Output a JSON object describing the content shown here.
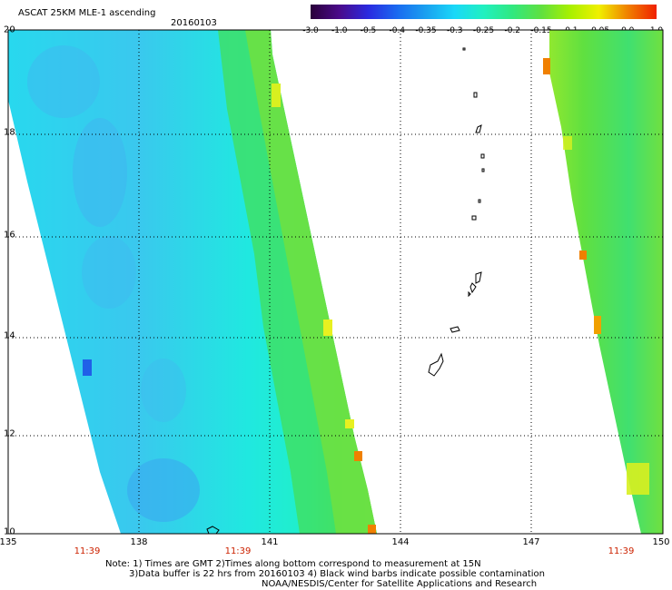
{
  "title": "ASCAT 25KM MLE-1 ascending",
  "date": "20160103",
  "colorbar": {
    "labels": [
      "-3.0",
      "-1.0",
      "-0.5",
      "-0.4",
      "-0.35",
      "-0.3",
      "-0.25",
      "-0.2",
      "-0.15",
      "-0.1",
      "-0.05",
      "0.0",
      "1.0"
    ],
    "colors": [
      "#2a003a",
      "#4a0a8a",
      "#2a2ae0",
      "#1a6af0",
      "#1aa0f0",
      "#1ad8f8",
      "#20f0c0",
      "#30e880",
      "#60e040",
      "#a8f000",
      "#f0f000",
      "#f08000",
      "#f02000"
    ]
  },
  "axes": {
    "lon_labels": [
      "135",
      "138",
      "141",
      "144",
      "147",
      "150"
    ],
    "lat_labels": [
      "20",
      "18",
      "16",
      "14",
      "12",
      "10"
    ],
    "lon_range": [
      135,
      150
    ],
    "lat_range": [
      10,
      20
    ]
  },
  "times": [
    "11:39",
    "11:39",
    "11:39"
  ],
  "notes": [
    "Note: 1) Times are GMT 2)Times along bottom correspond to measurement at 15N",
    "3)Data buffer is 22 hrs from 20160103 4) Black wind barbs indicate possible contamination",
    "NOAA/NESDIS/Center for Satellite Applications and Research"
  ],
  "colors": {
    "swath_base": "#1ee8e0",
    "swath_inner": "#30cfe8",
    "swath_edge": "#6ee040",
    "swath_edge2": "#a8e830",
    "grid": "#000000",
    "time_label": "#cc2200"
  },
  "icons": [
    "coastline-guam-icon",
    "coastline-saipan-icon",
    "coastline-tinian-icon",
    "coastline-rota-icon"
  ]
}
